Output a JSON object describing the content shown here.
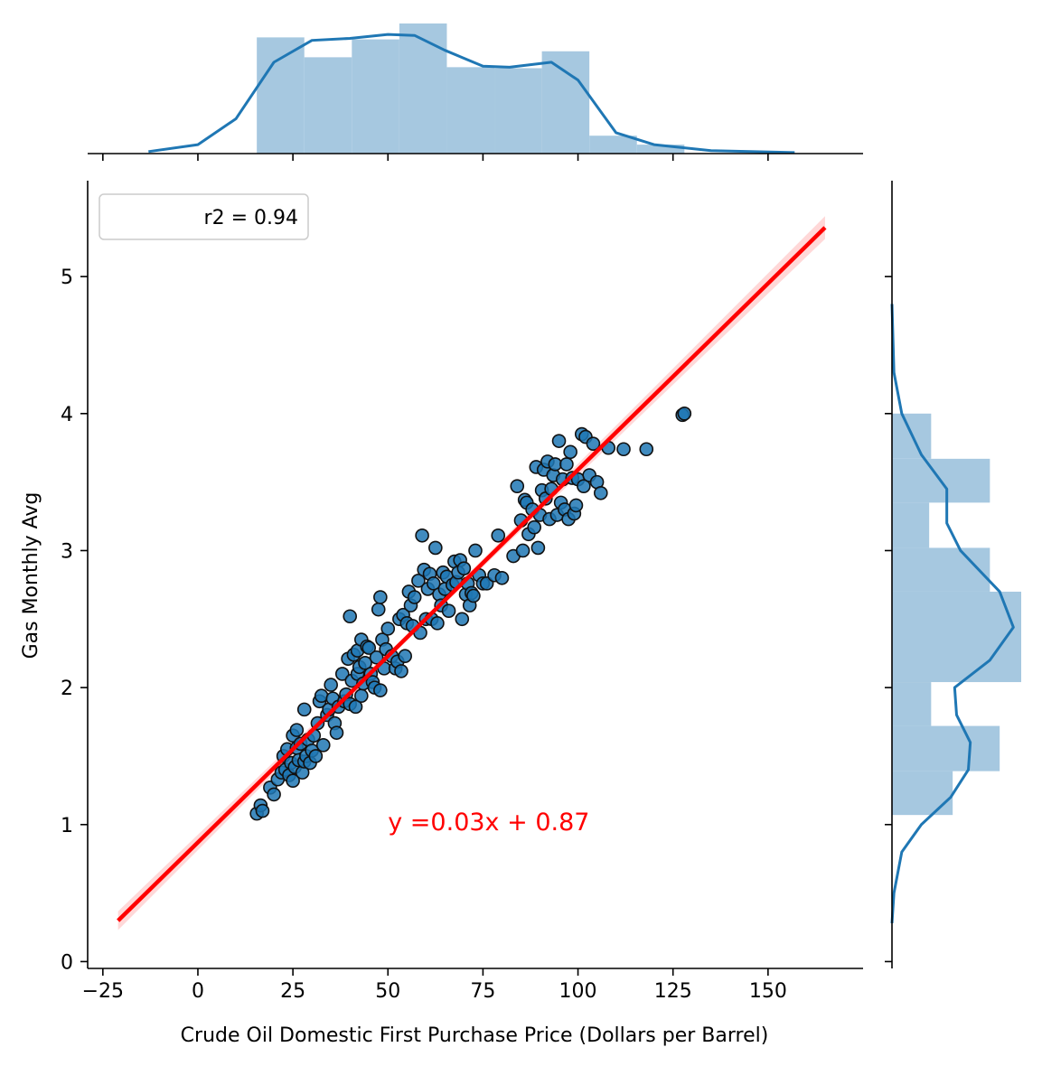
{
  "chart_data": {
    "type": "scatter",
    "xlabel": "Crude Oil Domestic First Purchase Price (Dollars per Barrel)",
    "ylabel": "Gas Monthly Avg",
    "xlim": [
      -29,
      175
    ],
    "ylim": [
      -0.05,
      5.7
    ],
    "xticks": [
      -25,
      0,
      25,
      50,
      75,
      100,
      125,
      150
    ],
    "yticks": [
      0,
      1,
      2,
      3,
      4,
      5
    ],
    "xtick_labels": [
      "−25",
      "0",
      "25",
      "50",
      "75",
      "100",
      "125",
      "150"
    ],
    "ytick_labels": [
      "0",
      "1",
      "2",
      "3",
      "4",
      "5"
    ],
    "legend": {
      "text": "r2 = 0.94",
      "position": "upper-left"
    },
    "annotation": {
      "text": "y =0.03x + 0.87",
      "x": 50,
      "y": 1.0,
      "color": "#ff0000"
    },
    "regression": {
      "slope": 0.0272,
      "intercept": 0.87,
      "x_range": [
        -21,
        165
      ],
      "color": "#ff0000",
      "ci_color": "#ffc8c8"
    },
    "marker_color": "#1f77b4",
    "points": [
      [
        15.5,
        1.08
      ],
      [
        16.5,
        1.14
      ],
      [
        17,
        1.1
      ],
      [
        19,
        1.27
      ],
      [
        20,
        1.22
      ],
      [
        21,
        1.33
      ],
      [
        22,
        1.38
      ],
      [
        22.5,
        1.5
      ],
      [
        23,
        1.4
      ],
      [
        23.5,
        1.55
      ],
      [
        24,
        1.36
      ],
      [
        24.5,
        1.45
      ],
      [
        25,
        1.65
      ],
      [
        25,
        1.32
      ],
      [
        25.5,
        1.42
      ],
      [
        26,
        1.56
      ],
      [
        26,
        1.69
      ],
      [
        26.5,
        1.47
      ],
      [
        27,
        1.59
      ],
      [
        27.5,
        1.38
      ],
      [
        28,
        1.84
      ],
      [
        28,
        1.46
      ],
      [
        28.5,
        1.5
      ],
      [
        29,
        1.62
      ],
      [
        29.5,
        1.45
      ],
      [
        30,
        1.54
      ],
      [
        30.5,
        1.65
      ],
      [
        31,
        1.5
      ],
      [
        31.5,
        1.74
      ],
      [
        32,
        1.9
      ],
      [
        32.5,
        1.94
      ],
      [
        33,
        1.58
      ],
      [
        34,
        1.8
      ],
      [
        34.5,
        1.84
      ],
      [
        35,
        2.02
      ],
      [
        35.5,
        1.92
      ],
      [
        36,
        1.74
      ],
      [
        36.5,
        1.67
      ],
      [
        37,
        1.86
      ],
      [
        38,
        2.1
      ],
      [
        38.5,
        1.9
      ],
      [
        39,
        1.95
      ],
      [
        39.5,
        2.21
      ],
      [
        40,
        2.52
      ],
      [
        40,
        1.88
      ],
      [
        40.5,
        2.05
      ],
      [
        41,
        2.24
      ],
      [
        41.5,
        1.86
      ],
      [
        42,
        2.27
      ],
      [
        42,
        2.1
      ],
      [
        42.5,
        2.15
      ],
      [
        43,
        1.94
      ],
      [
        43,
        2.35
      ],
      [
        43.5,
        2.03
      ],
      [
        44,
        2.18
      ],
      [
        44.5,
        2.3
      ],
      [
        45,
        2.29
      ],
      [
        45.5,
        2.1
      ],
      [
        46,
        2.04
      ],
      [
        46.5,
        2.0
      ],
      [
        47,
        2.22
      ],
      [
        47.5,
        2.57
      ],
      [
        48,
        2.66
      ],
      [
        48,
        1.98
      ],
      [
        48.5,
        2.35
      ],
      [
        49,
        2.14
      ],
      [
        49.5,
        2.28
      ],
      [
        50,
        2.43
      ],
      [
        51,
        2.23
      ],
      [
        52,
        2.14
      ],
      [
        52.5,
        2.19
      ],
      [
        53,
        2.5
      ],
      [
        53.5,
        2.12
      ],
      [
        54,
        2.53
      ],
      [
        54.5,
        2.23
      ],
      [
        55,
        2.47
      ],
      [
        55.5,
        2.7
      ],
      [
        56,
        2.6
      ],
      [
        56.5,
        2.45
      ],
      [
        57,
        2.66
      ],
      [
        58,
        2.78
      ],
      [
        58.5,
        2.4
      ],
      [
        59,
        3.11
      ],
      [
        59.5,
        2.86
      ],
      [
        60,
        2.5
      ],
      [
        60.5,
        2.72
      ],
      [
        61,
        2.83
      ],
      [
        61.5,
        2.5
      ],
      [
        62,
        2.76
      ],
      [
        62.5,
        3.02
      ],
      [
        63,
        2.47
      ],
      [
        63.5,
        2.68
      ],
      [
        64,
        2.6
      ],
      [
        64.5,
        2.84
      ],
      [
        65,
        2.72
      ],
      [
        65.5,
        2.81
      ],
      [
        66,
        2.56
      ],
      [
        67,
        2.75
      ],
      [
        67.5,
        2.92
      ],
      [
        68,
        2.77
      ],
      [
        68.5,
        2.84
      ],
      [
        69,
        2.93
      ],
      [
        69.5,
        2.5
      ],
      [
        70,
        2.87
      ],
      [
        70.5,
        2.68
      ],
      [
        71,
        2.76
      ],
      [
        71.5,
        2.6
      ],
      [
        72,
        2.69
      ],
      [
        72.5,
        2.67
      ],
      [
        73,
        3.0
      ],
      [
        74,
        2.82
      ],
      [
        75,
        2.76
      ],
      [
        76,
        2.76
      ],
      [
        78,
        2.82
      ],
      [
        79,
        3.11
      ],
      [
        80,
        2.8
      ],
      [
        83,
        2.96
      ],
      [
        84,
        3.47
      ],
      [
        85,
        3.22
      ],
      [
        85.5,
        3.0
      ],
      [
        86,
        3.37
      ],
      [
        86.5,
        3.35
      ],
      [
        87,
        3.12
      ],
      [
        88,
        3.3
      ],
      [
        88.5,
        3.17
      ],
      [
        89,
        3.61
      ],
      [
        89.5,
        3.02
      ],
      [
        90,
        3.26
      ],
      [
        90.5,
        3.44
      ],
      [
        91,
        3.59
      ],
      [
        91.5,
        3.38
      ],
      [
        92,
        3.65
      ],
      [
        92.5,
        3.23
      ],
      [
        93,
        3.45
      ],
      [
        93.5,
        3.55
      ],
      [
        94,
        3.63
      ],
      [
        94.5,
        3.26
      ],
      [
        95,
        3.8
      ],
      [
        95.5,
        3.35
      ],
      [
        96,
        3.52
      ],
      [
        96.5,
        3.3
      ],
      [
        97,
        3.63
      ],
      [
        97.5,
        3.23
      ],
      [
        98,
        3.72
      ],
      [
        98.5,
        3.53
      ],
      [
        99,
        3.27
      ],
      [
        99.5,
        3.33
      ],
      [
        100,
        3.52
      ],
      [
        101,
        3.85
      ],
      [
        101.5,
        3.47
      ],
      [
        102,
        3.83
      ],
      [
        103,
        3.55
      ],
      [
        104,
        3.78
      ],
      [
        105,
        3.5
      ],
      [
        106,
        3.42
      ],
      [
        108,
        3.75
      ],
      [
        112,
        3.74
      ],
      [
        118,
        3.74
      ],
      [
        127.5,
        3.99
      ],
      [
        128,
        4.0
      ]
    ],
    "x_hist": {
      "bin_edges": [
        15.5,
        28,
        40.5,
        53,
        65.5,
        78,
        90.5,
        103,
        115.5,
        128
      ],
      "density": [
        0.0117,
        0.0097,
        0.0115,
        0.0131,
        0.0087,
        0.0086,
        0.0103,
        0.0018,
        0.0009
      ],
      "kde_x": [
        -13,
        0,
        10,
        20,
        30,
        40,
        50,
        57,
        65,
        75,
        82,
        93,
        100,
        110,
        120,
        135,
        157
      ],
      "kde_y": [
        0.0002,
        0.0009,
        0.0035,
        0.0092,
        0.0114,
        0.0116,
        0.012,
        0.0119,
        0.0104,
        0.0088,
        0.0087,
        0.0092,
        0.0074,
        0.0021,
        0.0009,
        0.0003,
        0.0001
      ]
    },
    "y_hist": {
      "bin_edges": [
        1.07,
        1.39,
        1.72,
        2.04,
        2.37,
        2.7,
        3.02,
        3.35,
        3.67,
        4.0
      ],
      "density": [
        0.31,
        0.55,
        0.2,
        0.66,
        0.66,
        0.5,
        0.19,
        0.5,
        0.2
      ],
      "kde_y": [
        0.28,
        0.5,
        0.8,
        1.0,
        1.2,
        1.4,
        1.6,
        1.8,
        2.0,
        2.2,
        2.44,
        2.7,
        3.0,
        3.2,
        3.45,
        3.7,
        4.0,
        4.3,
        4.8
      ],
      "kde_x": [
        0.0,
        0.01,
        0.05,
        0.15,
        0.3,
        0.39,
        0.4,
        0.33,
        0.32,
        0.5,
        0.62,
        0.55,
        0.35,
        0.28,
        0.28,
        0.15,
        0.05,
        0.01,
        0.0
      ]
    }
  }
}
